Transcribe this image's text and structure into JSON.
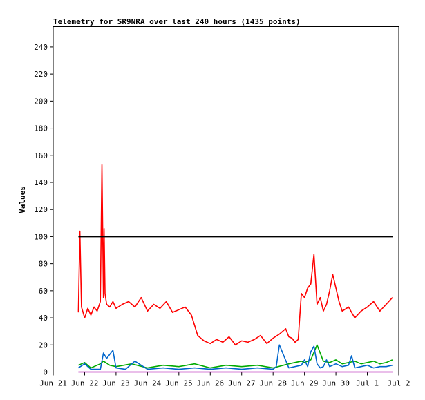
{
  "chart_data": {
    "type": "line",
    "title": "Telemetry for SR9NRA over last 240 hours (1435 points)",
    "xlabel": "",
    "ylabel": "Values",
    "ylim": [
      0,
      255
    ],
    "yticks": [
      0,
      20,
      40,
      60,
      80,
      100,
      120,
      140,
      160,
      180,
      200,
      220,
      240
    ],
    "xlim": [
      0,
      11
    ],
    "xtick_labels": [
      "Jun 21",
      "Jun 22",
      "Jun 23",
      "Jun 24",
      "Jun 25",
      "Jun 26",
      "Jun 27",
      "Jun 28",
      "Jun 29",
      "Jun 30",
      "Jul 1",
      "Jul 2"
    ],
    "grid": false,
    "legend": "none",
    "series": [
      {
        "color": "#ff0000",
        "x": [
          0.8,
          0.85,
          0.9,
          1.0,
          1.1,
          1.2,
          1.3,
          1.4,
          1.5,
          1.55,
          1.6,
          1.62,
          1.65,
          1.7,
          1.8,
          1.9,
          2.0,
          2.2,
          2.4,
          2.6,
          2.8,
          3.0,
          3.2,
          3.4,
          3.6,
          3.8,
          4.0,
          4.2,
          4.4,
          4.6,
          4.8,
          5.0,
          5.2,
          5.4,
          5.6,
          5.8,
          6.0,
          6.2,
          6.4,
          6.6,
          6.8,
          7.0,
          7.2,
          7.4,
          7.5,
          7.6,
          7.7,
          7.8,
          7.9,
          8.0,
          8.1,
          8.2,
          8.3,
          8.4,
          8.5,
          8.6,
          8.7,
          8.8,
          8.9,
          9.0,
          9.1,
          9.2,
          9.4,
          9.6,
          9.8,
          10.0,
          10.2,
          10.4,
          10.6,
          10.8
        ],
        "y": [
          44,
          104,
          48,
          40,
          47,
          42,
          48,
          45,
          52,
          153,
          55,
          106,
          58,
          50,
          48,
          52,
          47,
          50,
          52,
          48,
          55,
          45,
          50,
          47,
          52,
          44,
          46,
          48,
          42,
          27,
          23,
          21,
          24,
          22,
          26,
          20,
          23,
          22,
          24,
          27,
          21,
          25,
          28,
          32,
          26,
          25,
          22,
          24,
          58,
          55,
          62,
          65,
          87,
          50,
          55,
          45,
          50,
          60,
          72,
          62,
          52,
          45,
          48,
          40,
          45,
          48,
          52,
          45,
          50,
          55
        ],
        "name": ""
      },
      {
        "color": "#000000",
        "x": [
          0.8,
          10.82
        ],
        "y": [
          100,
          100
        ],
        "name": ""
      },
      {
        "color": "#00aa00",
        "x": [
          0.8,
          1.0,
          1.2,
          1.5,
          1.6,
          1.8,
          2.0,
          2.5,
          3.0,
          3.5,
          4.0,
          4.5,
          5.0,
          5.5,
          6.0,
          6.5,
          7.0,
          7.5,
          7.9,
          8.0,
          8.2,
          8.4,
          8.6,
          8.8,
          9.0,
          9.2,
          9.4,
          9.6,
          9.8,
          10.0,
          10.2,
          10.4,
          10.6,
          10.8
        ],
        "y": [
          5,
          7,
          3,
          6,
          8,
          5,
          4,
          6,
          3,
          5,
          4,
          6,
          3,
          5,
          4,
          5,
          3,
          6,
          8,
          7,
          9,
          20,
          8,
          7,
          9,
          6,
          7,
          8,
          6,
          7,
          8,
          6,
          7,
          9
        ],
        "name": ""
      },
      {
        "color": "#0066cc",
        "x": [
          0.8,
          1.0,
          1.2,
          1.5,
          1.6,
          1.7,
          1.8,
          1.9,
          2.0,
          2.3,
          2.6,
          3.0,
          3.5,
          4.0,
          4.5,
          5.0,
          5.5,
          6.0,
          6.5,
          7.0,
          7.1,
          7.2,
          7.5,
          7.9,
          8.0,
          8.1,
          8.2,
          8.3,
          8.4,
          8.5,
          8.6,
          8.7,
          8.8,
          9.0,
          9.2,
          9.4,
          9.5,
          9.6,
          9.8,
          10.0,
          10.2,
          10.4,
          10.6,
          10.8
        ],
        "y": [
          3,
          6,
          2,
          2,
          14,
          10,
          13,
          16,
          3,
          2,
          8,
          2,
          3,
          2,
          3,
          2,
          3,
          2,
          3,
          2,
          4,
          20,
          3,
          5,
          9,
          4,
          15,
          19,
          6,
          3,
          4,
          9,
          4,
          6,
          4,
          5,
          12,
          3,
          4,
          5,
          3,
          4,
          4,
          5
        ],
        "name": ""
      },
      {
        "color": "#aa00aa",
        "x": [
          0.8,
          10.82
        ],
        "y": [
          0,
          0
        ],
        "name": ""
      }
    ]
  }
}
